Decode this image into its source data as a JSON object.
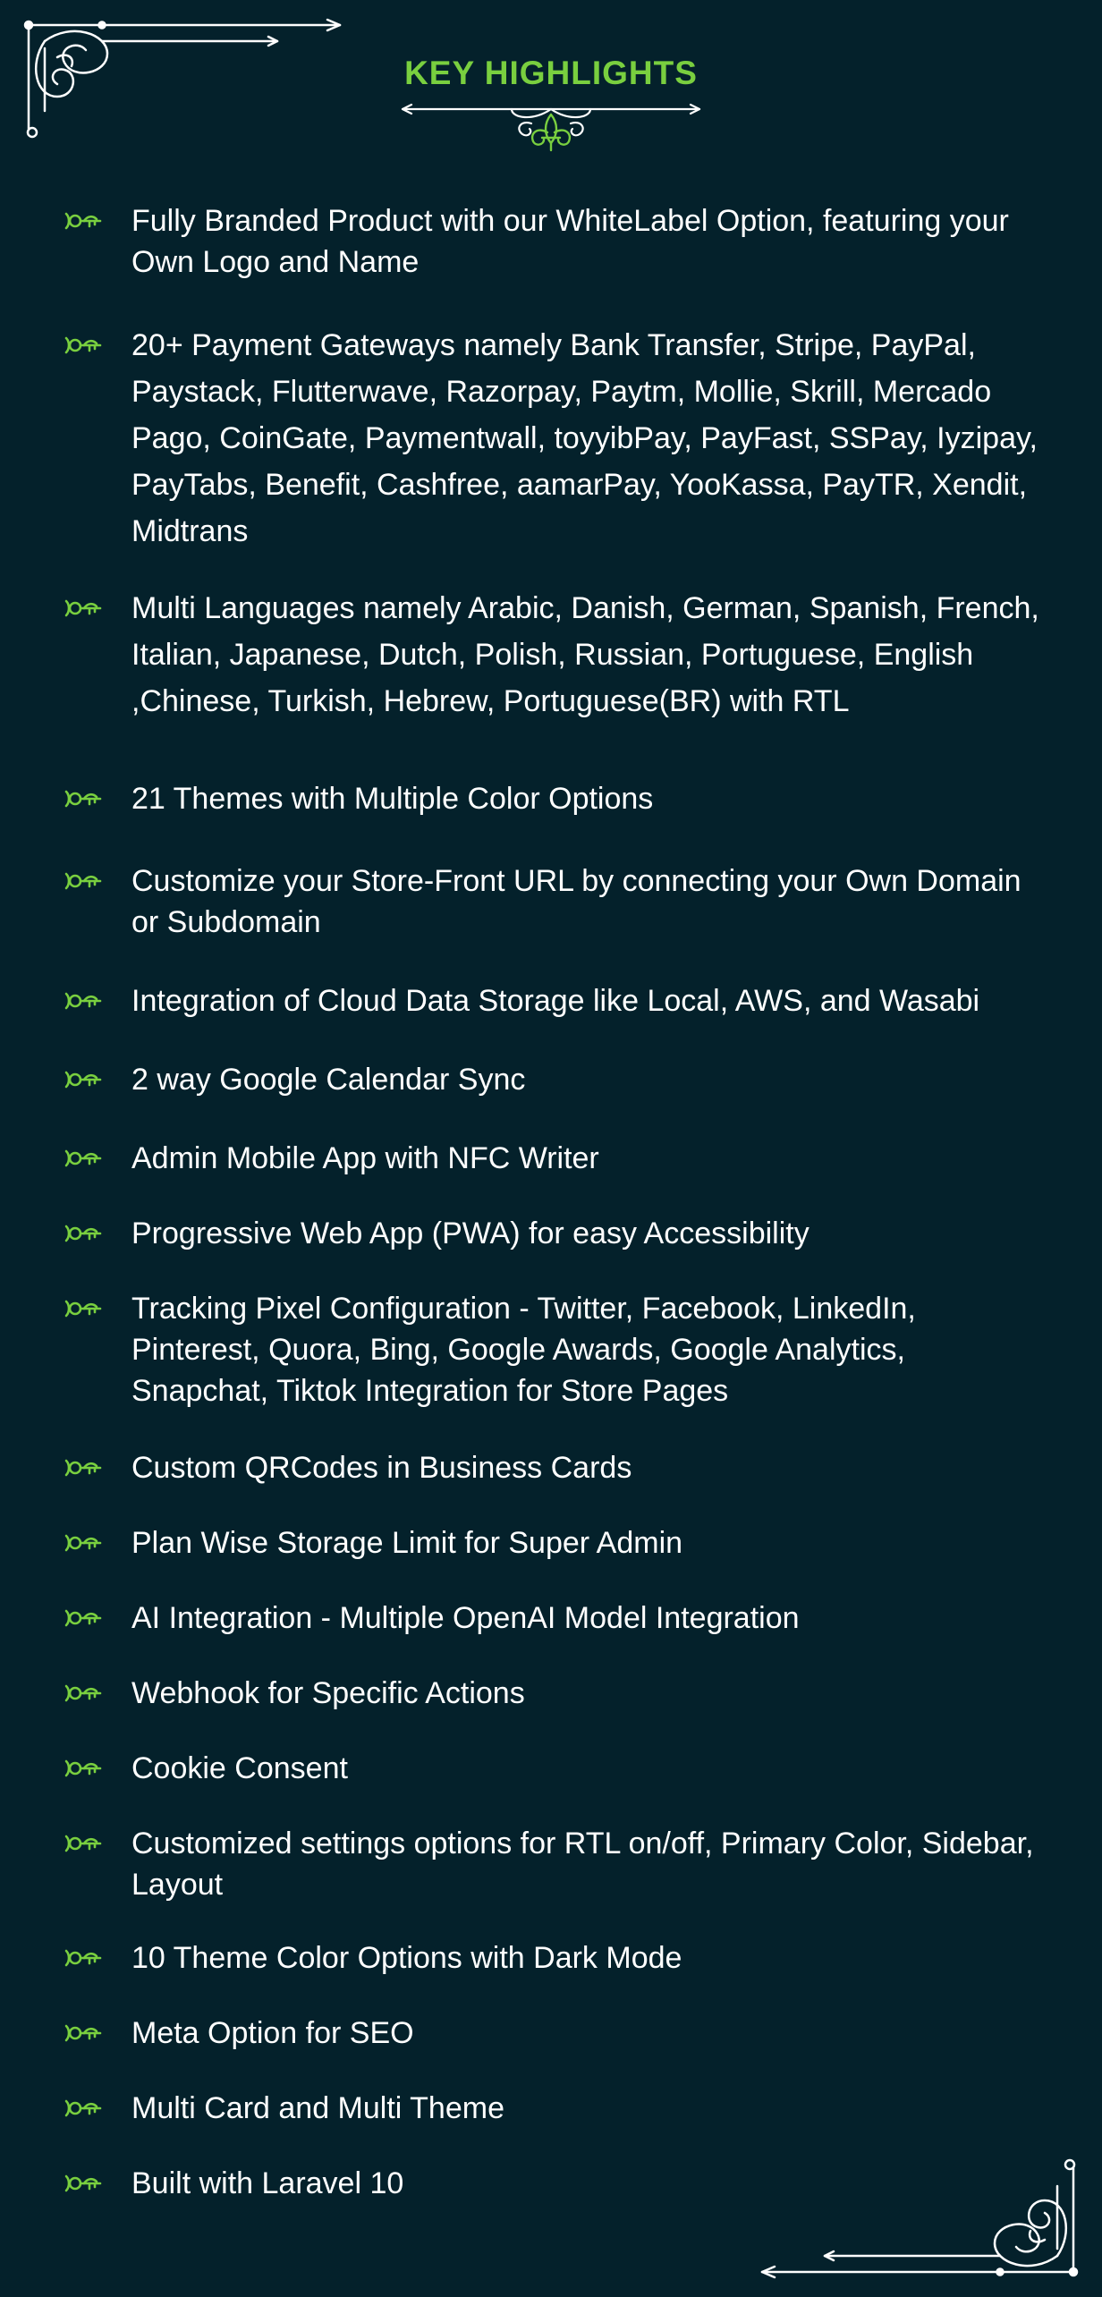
{
  "header": {
    "title": "KEY HIGHLIGHTS"
  },
  "colors": {
    "background": "#04212b",
    "accent": "#79cf3f",
    "text": "#ffffff"
  },
  "icons": {
    "bullet": "key-bullet-icon",
    "corner_top_left": "corner-flourish-icon",
    "corner_bottom_right": "corner-flourish-icon",
    "title_divider": "fleur-de-lis-divider-icon"
  },
  "highlights": [
    "Fully Branded Product with our WhiteLabel Option, featuring your Own Logo and Name",
    "20+ Payment Gateways namely Bank Transfer, Stripe, PayPal, Paystack, Flutterwave, Razorpay, Paytm, Mollie, Skrill, Mercado Pago, CoinGate, Paymentwall, toyyibPay, PayFast, SSPay, Iyzipay, PayTabs, Benefit, Cashfree, aamarPay, YooKassa, PayTR, Xendit, Midtrans",
    "Multi Languages namely Arabic, Danish, German, Spanish, French, Italian, Japanese, Dutch, Polish, Russian, Portuguese, English ,Chinese, Turkish, Hebrew, Portuguese(BR) with RTL",
    "21 Themes with Multiple Color Options",
    "Customize your Store-Front URL by connecting your Own Domain or Subdomain",
    "Integration of Cloud Data Storage like Local, AWS, and Wasabi",
    "2 way Google Calendar Sync",
    "Admin Mobile App with NFC Writer",
    "Progressive Web App (PWA) for easy Accessibility",
    "Tracking Pixel Configuration - Twitter, Facebook, LinkedIn, Pinterest, Quora, Bing, Google Awards, Google Analytics, Snapchat, Tiktok Integration for Store Pages",
    "Custom QRCodes in Business Cards",
    "Plan Wise Storage Limit for Super Admin",
    "AI Integration - Multiple OpenAI Model Integration",
    "Webhook for Specific Actions",
    "Cookie Consent",
    "Customized settings options for RTL on/off, Primary Color, Sidebar, Layout",
    "10 Theme Color Options with Dark Mode",
    "Meta Option for SEO",
    "Multi Card and Multi Theme",
    "Built with Laravel 10"
  ]
}
